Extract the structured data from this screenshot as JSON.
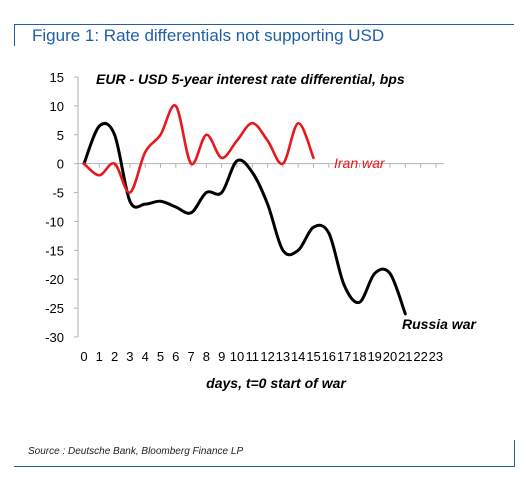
{
  "figure": {
    "title": "Figure 1: Rate differentials not supporting USD",
    "source": "Source : Deutsche Bank, Bloomberg Finance LP"
  },
  "chart_data": {
    "type": "line",
    "title": "EUR - USD 5-year interest rate differential, bps",
    "xlabel": "days, t=0 start of war",
    "ylabel": "",
    "xlim": [
      0,
      23
    ],
    "ylim": [
      -30,
      15
    ],
    "y_ticks": [
      15,
      10,
      5,
      0,
      -5,
      -10,
      -15,
      -20,
      -25,
      -30
    ],
    "x_ticks": [
      0,
      1,
      2,
      3,
      4,
      5,
      6,
      7,
      8,
      9,
      10,
      11,
      12,
      13,
      14,
      15,
      16,
      17,
      18,
      19,
      20,
      21,
      22,
      23
    ],
    "grid": false,
    "series": [
      {
        "name": "Iran war",
        "color": "#e8191e",
        "x": [
          0,
          1,
          2,
          3,
          4,
          5,
          6,
          7,
          8,
          9,
          10,
          11,
          12,
          13,
          14,
          15
        ],
        "y": [
          0,
          -2,
          0,
          -5,
          2,
          5,
          10,
          0,
          5,
          1,
          4,
          7,
          4,
          0,
          7,
          1
        ]
      },
      {
        "name": "Russia war",
        "color": "#000000",
        "x": [
          0,
          1,
          2,
          3,
          4,
          5,
          6,
          7,
          8,
          9,
          10,
          11,
          12,
          13,
          14,
          15,
          16,
          17,
          18,
          19,
          20,
          21
        ],
        "y": [
          0,
          6.5,
          5,
          -6.5,
          -7,
          -6.5,
          -7.5,
          -8.5,
          -5,
          -5,
          0.5,
          -1.5,
          -7,
          -15,
          -15,
          -11,
          -12,
          -21,
          -24,
          -19,
          -19,
          -26
        ]
      }
    ]
  }
}
